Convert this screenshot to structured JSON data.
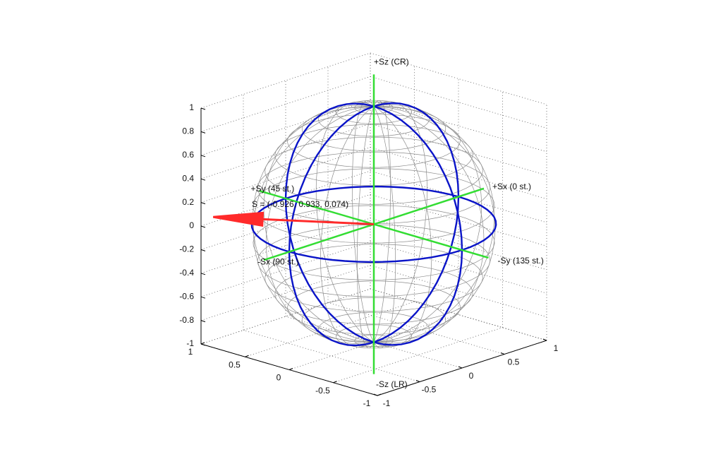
{
  "chart_data": {
    "type": "poincare-sphere",
    "pole_labels": [
      "+Sx (0 st.)",
      "-Sx (90 st.)",
      "+Sy (45 st.)",
      "-Sy (135 st.)",
      "+Sz (CR)",
      "-Sz (LR)"
    ],
    "vector": {
      "label": "S = (-0.926, 0.933, 0.074)",
      "values": [
        -0.926,
        0.933,
        0.074
      ],
      "color": "#ff2a2a"
    },
    "xlim": [
      -1,
      1
    ],
    "ylim": [
      -1,
      1
    ],
    "zlim": [
      -1,
      1
    ],
    "xticks": [
      -1,
      -0.5,
      0,
      0.5,
      1
    ],
    "yticks": [
      -1,
      -0.5,
      0,
      0.5,
      1
    ],
    "zticks": [
      -1,
      -0.8,
      -0.6,
      -0.4,
      -0.2,
      0,
      0.2,
      0.4,
      0.6,
      0.8,
      1
    ],
    "grid": true,
    "mesh_color": "#8c8c8c",
    "circle_color": "#0a14c8",
    "axis_color": "#33dd33"
  }
}
